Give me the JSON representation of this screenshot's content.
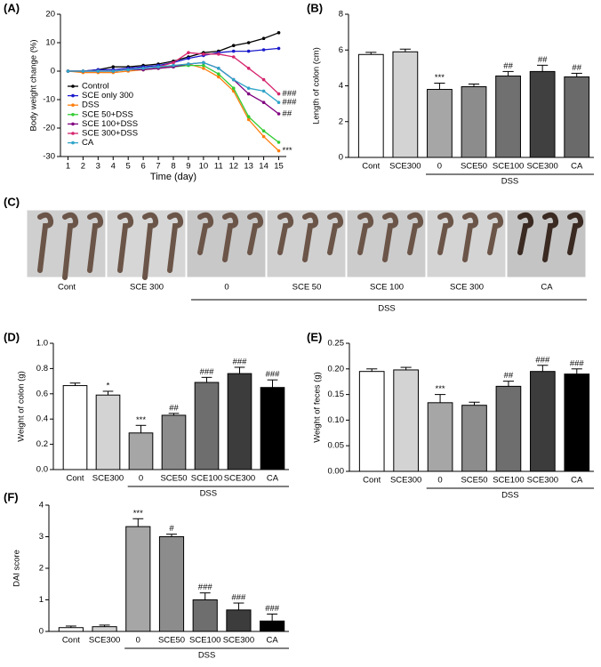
{
  "chart_data": [
    {
      "type": "line",
      "panel_label": "(A)",
      "xlabel": "Time (day)",
      "ylabel": "Body weight change (%)",
      "x": [
        1,
        2,
        3,
        4,
        5,
        6,
        7,
        8,
        9,
        10,
        11,
        12,
        13,
        14,
        15
      ],
      "xlim": [
        0.5,
        15.5
      ],
      "xticks": [
        1,
        2,
        3,
        4,
        5,
        6,
        7,
        8,
        9,
        10,
        11,
        12,
        13,
        14,
        15
      ],
      "ylim": [
        -30,
        20
      ],
      "yticks": [
        -30,
        -20,
        -10,
        0,
        10,
        20
      ],
      "legend": "left",
      "series": [
        {
          "name": "Control",
          "color": "#000000",
          "values": [
            0,
            0,
            0.5,
            1.5,
            1.5,
            2,
            2.5,
            3.5,
            5,
            6.5,
            7,
            9,
            10,
            11.5,
            13.5
          ]
        },
        {
          "name": "SCE only 300",
          "color": "#1a1acc",
          "values": [
            0,
            0,
            0.5,
            0.5,
            1,
            1.5,
            2,
            3,
            4.5,
            5.5,
            6.5,
            7,
            7,
            7.5,
            8
          ]
        },
        {
          "name": "DSS",
          "color": "#ff7f0e",
          "values": [
            0,
            -0.5,
            -0.5,
            -0.5,
            0,
            0.5,
            1,
            2,
            2.5,
            1,
            -2,
            -7,
            -17,
            -23,
            -28
          ],
          "end_label": "***"
        },
        {
          "name": "SCE 50+DSS",
          "color": "#33cc33",
          "values": [
            0,
            0,
            0,
            0,
            0.5,
            0.5,
            1,
            1.5,
            2,
            2,
            -1,
            -6,
            -16,
            -21,
            -25
          ]
        },
        {
          "name": "SCE 100+DSS",
          "color": "#800080",
          "values": [
            0,
            0,
            0,
            0,
            0.5,
            0.5,
            1,
            1.5,
            2.5,
            3,
            1,
            -3,
            -8,
            -11,
            -15
          ],
          "end_label": "##"
        },
        {
          "name": "SCE 300+DSS",
          "color": "#d6266e",
          "values": [
            0,
            0,
            0,
            0,
            0.5,
            1,
            1.5,
            3,
            6.5,
            6,
            6,
            5,
            1,
            -3,
            -8
          ],
          "end_label": "###"
        },
        {
          "name": "CA",
          "color": "#2fa4c8",
          "values": [
            0,
            0,
            0,
            0,
            0.5,
            1,
            1.5,
            2,
            2.5,
            3,
            1,
            -3,
            -6,
            -7,
            -11
          ],
          "end_label": "###"
        }
      ]
    },
    {
      "type": "bar",
      "panel_label": "(B)",
      "ylabel": "Length of colon (cm)",
      "categories": [
        "Cont",
        "SCE300",
        "0",
        "SCE50",
        "SCE100",
        "SCE300",
        "CA"
      ],
      "group_label": "DSS",
      "values": [
        5.75,
        5.9,
        3.8,
        3.95,
        4.55,
        4.8,
        4.5
      ],
      "errors": [
        0.12,
        0.15,
        0.35,
        0.15,
        0.25,
        0.35,
        0.2
      ],
      "annotations": [
        null,
        null,
        "***",
        null,
        "##",
        "##",
        "##"
      ],
      "colors": [
        "#ffffff",
        "#d3d3d3",
        "#a6a6a6",
        "#8c8c8c",
        "#707070",
        "#404040",
        "#6a6a6a"
      ],
      "ylim": [
        0,
        8
      ],
      "yticks": [
        0,
        2,
        4,
        6,
        8
      ]
    },
    {
      "type": "bar",
      "panel_label": "(D)",
      "ylabel": "Weight of colon (g)",
      "categories": [
        "Cont",
        "SCE300",
        "0",
        "SCE50",
        "SCE100",
        "SCE300",
        "CA"
      ],
      "group_label": "DSS",
      "values": [
        0.665,
        0.59,
        0.29,
        0.43,
        0.69,
        0.76,
        0.65
      ],
      "errors": [
        0.02,
        0.03,
        0.06,
        0.015,
        0.04,
        0.05,
        0.06
      ],
      "annotations": [
        null,
        "*",
        "***",
        "##",
        "###",
        "###",
        "###"
      ],
      "colors": [
        "#ffffff",
        "#d3d3d3",
        "#a6a6a6",
        "#8c8c8c",
        "#6e6e6e",
        "#3c3c3c",
        "#000000"
      ],
      "ylim": [
        0,
        1.0
      ],
      "yticks": [
        {
          "value": 0,
          "label": "0.0"
        },
        0.2,
        0.4,
        0.6,
        0.8,
        {
          "value": 1,
          "label": "1.0"
        }
      ]
    },
    {
      "type": "bar",
      "panel_label": "(E)",
      "ylabel": "Weight of feces (g)",
      "categories": [
        "Cont",
        "SCE300",
        "0",
        "SCE50",
        "SCE100",
        "SCE300",
        "CA"
      ],
      "group_label": "DSS",
      "values": [
        0.195,
        0.198,
        0.134,
        0.129,
        0.166,
        0.195,
        0.19
      ],
      "errors": [
        0.005,
        0.005,
        0.016,
        0.006,
        0.01,
        0.012,
        0.01
      ],
      "annotations": [
        null,
        null,
        "***",
        null,
        "##",
        "###",
        "###"
      ],
      "colors": [
        "#ffffff",
        "#d3d3d3",
        "#a6a6a6",
        "#8c8c8c",
        "#6e6e6e",
        "#3c3c3c",
        "#000000"
      ],
      "ylim": [
        0,
        0.25
      ],
      "yticks": [
        {
          "value": 0,
          "label": "0.00"
        },
        {
          "value": 0.05,
          "label": "0.05"
        },
        {
          "value": 0.1,
          "label": "0.10"
        },
        {
          "value": 0.15,
          "label": "0.15"
        },
        {
          "value": 0.2,
          "label": "0.20"
        },
        {
          "value": 0.25,
          "label": "0.25"
        }
      ]
    },
    {
      "type": "bar",
      "panel_label": "(F)",
      "ylabel": "DAI score",
      "categories": [
        "Cont",
        "SCE300",
        "0",
        "SCE50",
        "SCE100",
        "SCE300",
        "CA"
      ],
      "group_label": "DSS",
      "values": [
        0.12,
        0.15,
        3.32,
        3.0,
        1.0,
        0.68,
        0.33
      ],
      "errors": [
        0.05,
        0.05,
        0.25,
        0.08,
        0.22,
        0.22,
        0.22
      ],
      "annotations": [
        null,
        null,
        "***",
        "#",
        "###",
        "###",
        "###"
      ],
      "colors": [
        "#ffffff",
        "#d3d3d3",
        "#a6a6a6",
        "#8c8c8c",
        "#6e6e6e",
        "#3c3c3c",
        "#000000"
      ],
      "ylim": [
        0,
        4
      ],
      "yticks": [
        0,
        1,
        2,
        3,
        4
      ]
    }
  ],
  "photo_panel": {
    "panel_label": "(C)",
    "labels": [
      "Cont",
      "SCE 300",
      "0",
      "SCE 50",
      "SCE 100",
      "SCE 300",
      "CA"
    ],
    "group_label": "DSS"
  }
}
